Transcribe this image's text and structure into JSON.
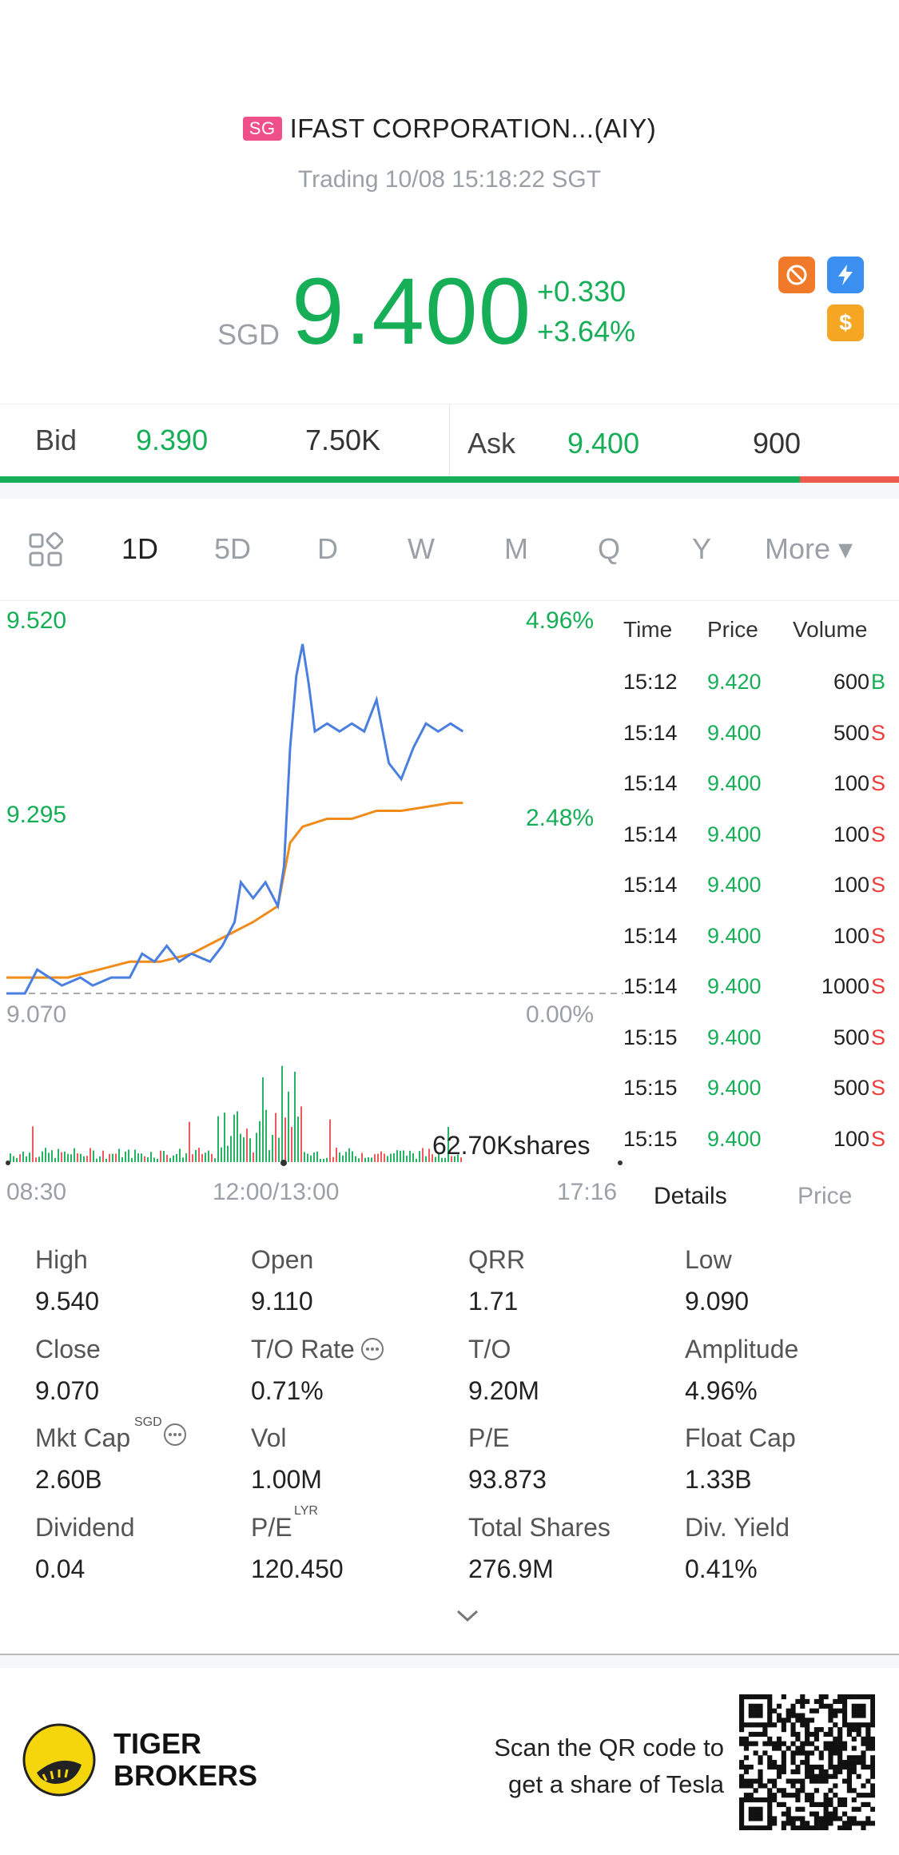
{
  "header": {
    "market_badge": "SG",
    "title": "IFAST CORPORATION...(AIY)",
    "status": "Trading 10/08 15:18:22 SGT"
  },
  "quote": {
    "currency": "SGD",
    "price": "9.400",
    "change": "+0.330",
    "change_pct": "+3.64%"
  },
  "bidask": {
    "bid_label": "Bid",
    "bid_price": "9.390",
    "bid_size": "7.50K",
    "ask_label": "Ask",
    "ask_price": "9.400",
    "ask_size": "900",
    "bid_ratio": 0.89
  },
  "tabs": [
    "1D",
    "5D",
    "D",
    "W",
    "M",
    "Q",
    "Y",
    "More ▾"
  ],
  "chart": {
    "y_top": "9.520",
    "y_mid": "9.295",
    "y_bot": "9.070",
    "pct_top": "4.96%",
    "pct_mid": "2.48%",
    "pct_bot": "0.00%",
    "volume_label": "62.70Kshares",
    "x_start": "08:30",
    "x_mid": "12:00/13:00",
    "x_end": "17:16"
  },
  "chart_data": {
    "type": "line",
    "ylim": [
      9.07,
      9.52
    ],
    "series": [
      {
        "name": "Price",
        "points": [
          [
            0,
            9.07
          ],
          [
            3,
            9.07
          ],
          [
            5,
            9.1
          ],
          [
            7,
            9.09
          ],
          [
            9,
            9.08
          ],
          [
            12,
            9.09
          ],
          [
            14,
            9.08
          ],
          [
            17,
            9.09
          ],
          [
            20,
            9.09
          ],
          [
            22,
            9.12
          ],
          [
            24,
            9.11
          ],
          [
            26,
            9.13
          ],
          [
            28,
            9.11
          ],
          [
            30,
            9.12
          ],
          [
            33,
            9.11
          ],
          [
            35,
            9.13
          ],
          [
            37,
            9.16
          ],
          [
            38,
            9.21
          ],
          [
            40,
            9.19
          ],
          [
            42,
            9.21
          ],
          [
            44,
            9.18
          ],
          [
            45,
            9.23
          ],
          [
            46,
            9.38
          ],
          [
            47,
            9.47
          ],
          [
            48,
            9.51
          ],
          [
            49,
            9.46
          ],
          [
            50,
            9.4
          ],
          [
            52,
            9.41
          ],
          [
            54,
            9.4
          ],
          [
            56,
            9.41
          ],
          [
            58,
            9.4
          ],
          [
            60,
            9.44
          ],
          [
            62,
            9.36
          ],
          [
            64,
            9.34
          ],
          [
            66,
            9.38
          ],
          [
            68,
            9.41
          ],
          [
            70,
            9.4
          ],
          [
            72,
            9.41
          ],
          [
            74,
            9.4
          ]
        ]
      },
      {
        "name": "Average",
        "points": [
          [
            0,
            9.09
          ],
          [
            5,
            9.09
          ],
          [
            10,
            9.09
          ],
          [
            15,
            9.1
          ],
          [
            20,
            9.11
          ],
          [
            25,
            9.11
          ],
          [
            30,
            9.12
          ],
          [
            35,
            9.14
          ],
          [
            40,
            9.16
          ],
          [
            44,
            9.18
          ],
          [
            45,
            9.22
          ],
          [
            46,
            9.26
          ],
          [
            48,
            9.28
          ],
          [
            52,
            9.29
          ],
          [
            56,
            9.29
          ],
          [
            60,
            9.3
          ],
          [
            64,
            9.3
          ],
          [
            68,
            9.305
          ],
          [
            72,
            9.31
          ],
          [
            74,
            9.31
          ]
        ]
      }
    ]
  },
  "ticks": {
    "headers": [
      "Time",
      "Price",
      "Volume"
    ],
    "rows": [
      {
        "time": "15:12",
        "price": "9.420",
        "vol": "600",
        "side": "B"
      },
      {
        "time": "15:14",
        "price": "9.400",
        "vol": "500",
        "side": "S"
      },
      {
        "time": "15:14",
        "price": "9.400",
        "vol": "100",
        "side": "S"
      },
      {
        "time": "15:14",
        "price": "9.400",
        "vol": "100",
        "side": "S"
      },
      {
        "time": "15:14",
        "price": "9.400",
        "vol": "100",
        "side": "S"
      },
      {
        "time": "15:14",
        "price": "9.400",
        "vol": "100",
        "side": "S"
      },
      {
        "time": "15:14",
        "price": "9.400",
        "vol": "1000",
        "side": "S"
      },
      {
        "time": "15:15",
        "price": "9.400",
        "vol": "500",
        "side": "S"
      },
      {
        "time": "15:15",
        "price": "9.400",
        "vol": "500",
        "side": "S"
      },
      {
        "time": "15:15",
        "price": "9.400",
        "vol": "100",
        "side": "S"
      }
    ],
    "tab_details": "Details",
    "tab_price": "Price"
  },
  "details": [
    {
      "label": "High",
      "value": "9.540"
    },
    {
      "label": "Open",
      "value": "9.110"
    },
    {
      "label": "QRR",
      "value": "1.71"
    },
    {
      "label": "Low",
      "value": "9.090"
    },
    {
      "label": "Close",
      "value": "9.070"
    },
    {
      "label": "T/O Rate",
      "value": "0.71%"
    },
    {
      "label": "T/O",
      "value": "9.20M"
    },
    {
      "label": "Amplitude",
      "value": "4.96%"
    },
    {
      "label": "Mkt Cap",
      "value": "2.60B"
    },
    {
      "label": "Vol",
      "value": "1.00M"
    },
    {
      "label": "P/E",
      "value": "93.873"
    },
    {
      "label": "Float Cap",
      "value": "1.33B"
    },
    {
      "label": "Dividend",
      "value": "0.04"
    },
    {
      "label": "P/E",
      "value": "120.450"
    },
    {
      "label": "Total Shares",
      "value": "276.9M"
    },
    {
      "label": "Div. Yield",
      "value": "0.41%"
    }
  ],
  "superscripts": {
    "mktcap": "SGD",
    "pe": "LYR"
  },
  "footer": {
    "brand_line1": "TIGER",
    "brand_line2": "BROKERS",
    "promo_line1": "Scan the QR code to",
    "promo_line2": "get a share of Tesla"
  },
  "colors": {
    "up": "#16ae57",
    "down": "#ee3b3b",
    "price_line": "#4a7fe0",
    "avg_line": "#ef8c1c"
  }
}
